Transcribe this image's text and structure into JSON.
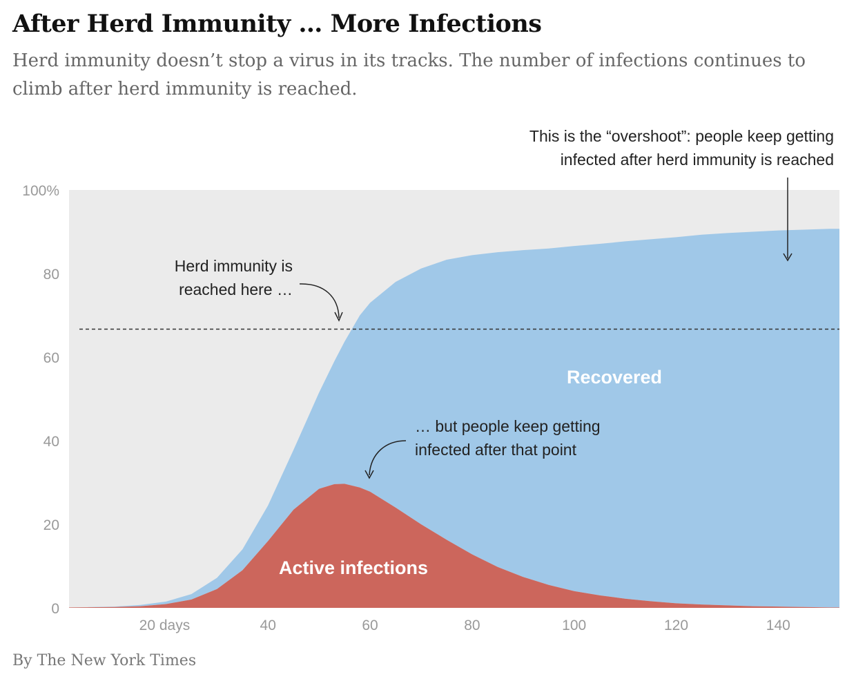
{
  "title": "After Herd Immunity … More Infections",
  "subtitle": "Herd immunity doesn’t stop a virus in its tracks. The number of infections continues to climb after herd immunity is reached.",
  "credit": "By The New York Times",
  "chart_data": {
    "type": "area",
    "x_tick_labels": [
      "20 days",
      "40",
      "60",
      "80",
      "100",
      "120",
      "140"
    ],
    "x_ticks": [
      20,
      40,
      60,
      80,
      100,
      120,
      140
    ],
    "y_tick_labels": [
      "0",
      "20",
      "40",
      "60",
      "80",
      "100%"
    ],
    "y_ticks": [
      0,
      20,
      40,
      60,
      80,
      100
    ],
    "xlim": [
      1,
      152
    ],
    "ylim": [
      0,
      100
    ],
    "grid": false,
    "herd_immunity_threshold": 66.7,
    "series": [
      {
        "name": "Active infections",
        "color": "#cc665c",
        "x": [
          1,
          10,
          15,
          20,
          25,
          30,
          35,
          40,
          45,
          50,
          53,
          55,
          58,
          60,
          65,
          70,
          75,
          80,
          85,
          90,
          95,
          100,
          105,
          110,
          115,
          120,
          125,
          130,
          135,
          140,
          145,
          150,
          152
        ],
        "values": [
          0.1,
          0.2,
          0.4,
          0.9,
          2,
          4.5,
          9,
          16,
          23.5,
          28.5,
          29.6,
          29.7,
          28.8,
          27.8,
          24,
          20,
          16.3,
          12.8,
          9.8,
          7.4,
          5.5,
          4,
          3,
          2.2,
          1.6,
          1.1,
          0.8,
          0.6,
          0.4,
          0.3,
          0.2,
          0.1,
          0.1
        ]
      },
      {
        "name": "Recovered",
        "color": "#a0c8e8",
        "x": [
          1,
          10,
          15,
          20,
          25,
          30,
          35,
          40,
          45,
          50,
          53,
          55,
          58,
          60,
          65,
          70,
          75,
          80,
          85,
          90,
          95,
          100,
          105,
          110,
          115,
          120,
          125,
          130,
          135,
          140,
          145,
          150,
          152
        ],
        "values": [
          0,
          0.1,
          0.3,
          0.6,
          1.3,
          2.7,
          5,
          8.5,
          14.3,
          23,
          29.4,
          34,
          41.2,
          45.2,
          54,
          61.2,
          67,
          71.6,
          75.3,
          78.2,
          80.5,
          82.6,
          84.1,
          85.5,
          86.6,
          87.6,
          88.5,
          89.1,
          89.6,
          90,
          90.3,
          90.6,
          90.6
        ]
      }
    ],
    "annotations": [
      {
        "lines": [
          "Herd immunity is",
          "reached here …"
        ]
      },
      {
        "lines": [
          "… but people keep getting",
          "infected after that point"
        ]
      },
      {
        "lines": [
          "This is the “overshoot”: people keep getting",
          "infected after herd immunity is reached"
        ]
      }
    ],
    "area_labels": [
      "Recovered",
      "Active infections"
    ],
    "background_color": "#ebebeb"
  }
}
